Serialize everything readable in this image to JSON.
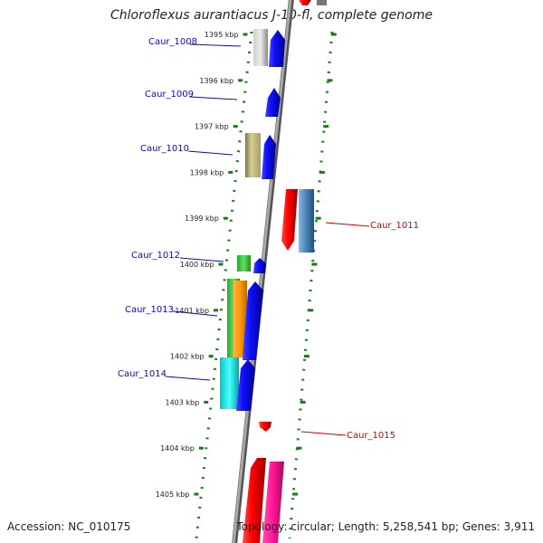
{
  "title": "Chloroflexus aurantiacus J-10-fl, complete genome",
  "accession": "Accession: NC_010175",
  "topology": "Topology: circular; Length: 5,258,541 bp; Genes: 3,911",
  "colors": {
    "forward_label": "#0b0bb0",
    "reverse_label": "#cc0000",
    "tick": "#1a7a1a",
    "backbone": "#888888"
  },
  "ticks": [
    "1395 kbp",
    "1396 kbp",
    "1397 kbp",
    "1398 kbp",
    "1399 kbp",
    "1400 kbp",
    "1401 kbp",
    "1402 kbp",
    "1403 kbp",
    "1404 kbp",
    "1405 kbp"
  ],
  "genes": [
    {
      "label": "Caur_1008",
      "strand": "forward"
    },
    {
      "label": "Caur_1009",
      "strand": "forward"
    },
    {
      "label": "Caur_1010",
      "strand": "forward"
    },
    {
      "label": "Caur_1011",
      "strand": "reverse"
    },
    {
      "label": "Caur_1012",
      "strand": "forward"
    },
    {
      "label": "Caur_1013",
      "strand": "forward"
    },
    {
      "label": "Caur_1014",
      "strand": "forward"
    },
    {
      "label": "Caur_1015",
      "strand": "reverse"
    }
  ]
}
